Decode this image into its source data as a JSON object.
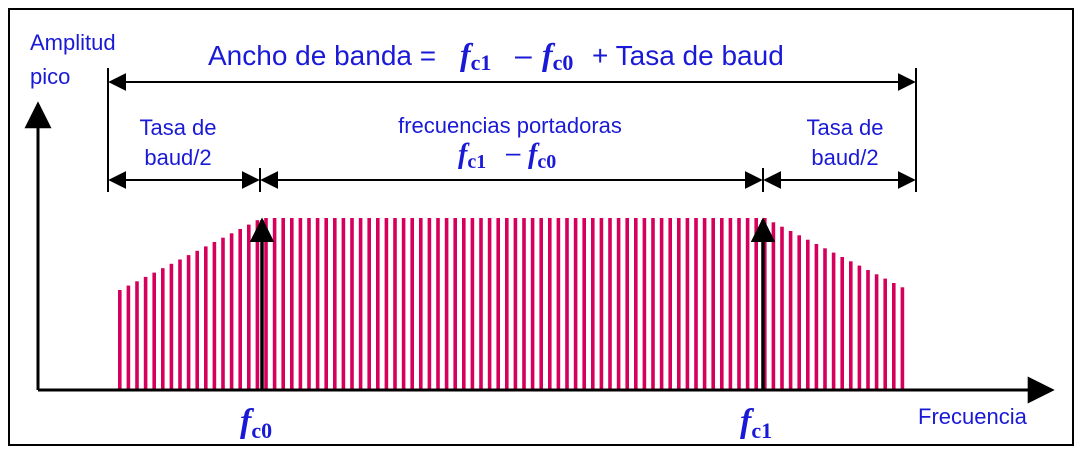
{
  "labels": {
    "y_axis_line1": "Amplitud",
    "y_axis_line2": "pico",
    "x_axis": "Frecuencia",
    "title_prefix": "Ancho de banda =",
    "title_suffix": "+ Tasa de baud",
    "left_band_line1": "Tasa de",
    "left_band_line2": "baud/2",
    "right_band_line1": "Tasa de",
    "right_band_line2": "baud/2",
    "carrier_label": "frecuencias portadoras"
  },
  "math": {
    "f": "f",
    "c1": "c1",
    "c0": "c0",
    "minus": "–"
  },
  "colors": {
    "text": "#1a1ad6",
    "spectrum": "#d6005c",
    "lines": "#000000"
  }
}
